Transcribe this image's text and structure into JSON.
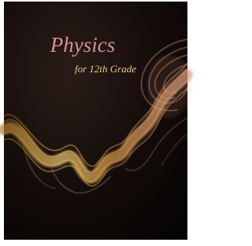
{
  "cover": {
    "title": "Physics",
    "subtitle": "for 12th Grade"
  }
}
